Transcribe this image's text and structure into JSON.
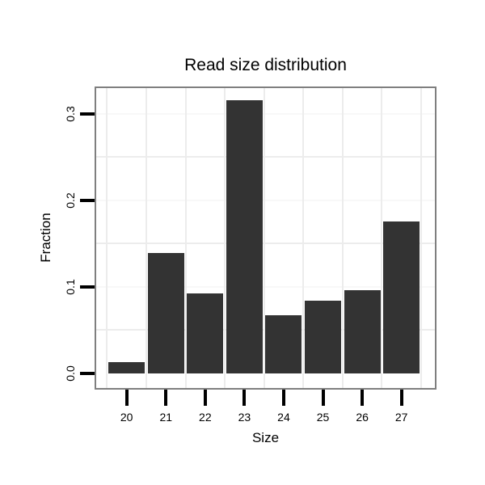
{
  "chart_data": {
    "type": "bar",
    "title": "Read size distribution",
    "xlabel": "Size",
    "ylabel": "Fraction",
    "categories": [
      "20",
      "21",
      "22",
      "23",
      "24",
      "25",
      "26",
      "27"
    ],
    "values": [
      0.013,
      0.139,
      0.092,
      0.316,
      0.067,
      0.084,
      0.096,
      0.176
    ],
    "y_tick_labels": [
      "0.0",
      "0.1",
      "0.2",
      "0.3"
    ],
    "y_tick_values": [
      0.0,
      0.1,
      0.2,
      0.3
    ],
    "ylim": [
      -0.019,
      0.332
    ],
    "grid_minor_values": [
      0.05,
      0.15,
      0.25
    ],
    "grid_major_values": [
      0.1,
      0.2,
      0.3
    ],
    "legend": "none",
    "colors": {
      "bar": "#333333",
      "panel_border": "#7f7f7f",
      "grid_minor": "#ececec",
      "grid_major": "#f8f8f8",
      "axis_tick": "#000000",
      "text": "#000000",
      "background": "#ffffff"
    }
  }
}
